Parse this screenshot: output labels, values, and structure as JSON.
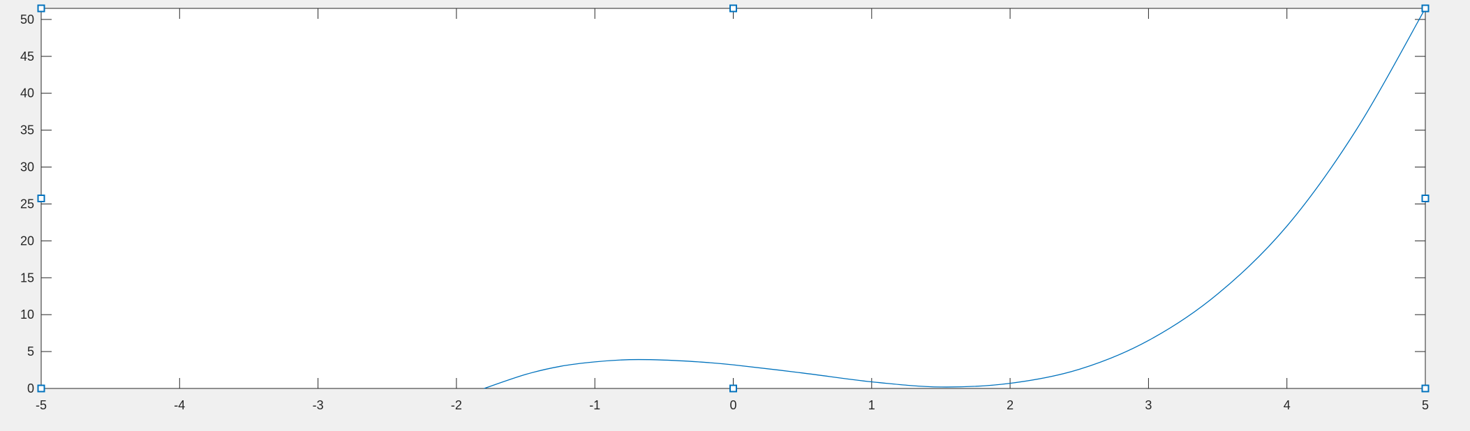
{
  "chart_data": {
    "type": "line",
    "title": "",
    "xlabel": "",
    "ylabel": "",
    "xlim": [
      -5,
      5
    ],
    "ylim": [
      0,
      51.5
    ],
    "xticks": [
      -5,
      -4,
      -3,
      -2,
      -1,
      0,
      1,
      2,
      3,
      4,
      5
    ],
    "yticks": [
      0,
      5,
      10,
      15,
      20,
      25,
      30,
      35,
      40,
      45,
      50
    ],
    "grid": false,
    "legend": "none",
    "series": [
      {
        "color": "#0072BD",
        "x": [
          -1.8,
          -1.5,
          -1.25,
          -1.0,
          -0.75,
          -0.5,
          -0.25,
          0.0,
          0.5,
          1.0,
          1.5,
          2.0,
          2.5,
          3.0,
          3.5,
          4.0,
          4.5,
          5.0
        ],
        "y": [
          0.0,
          1.9,
          3.0,
          3.6,
          3.9,
          3.85,
          3.6,
          3.2,
          2.1,
          0.9,
          0.2,
          0.7,
          2.6,
          6.5,
          12.8,
          22.0,
          35.0,
          51.5
        ]
      }
    ],
    "selection_handles_color": "#0072BD"
  }
}
